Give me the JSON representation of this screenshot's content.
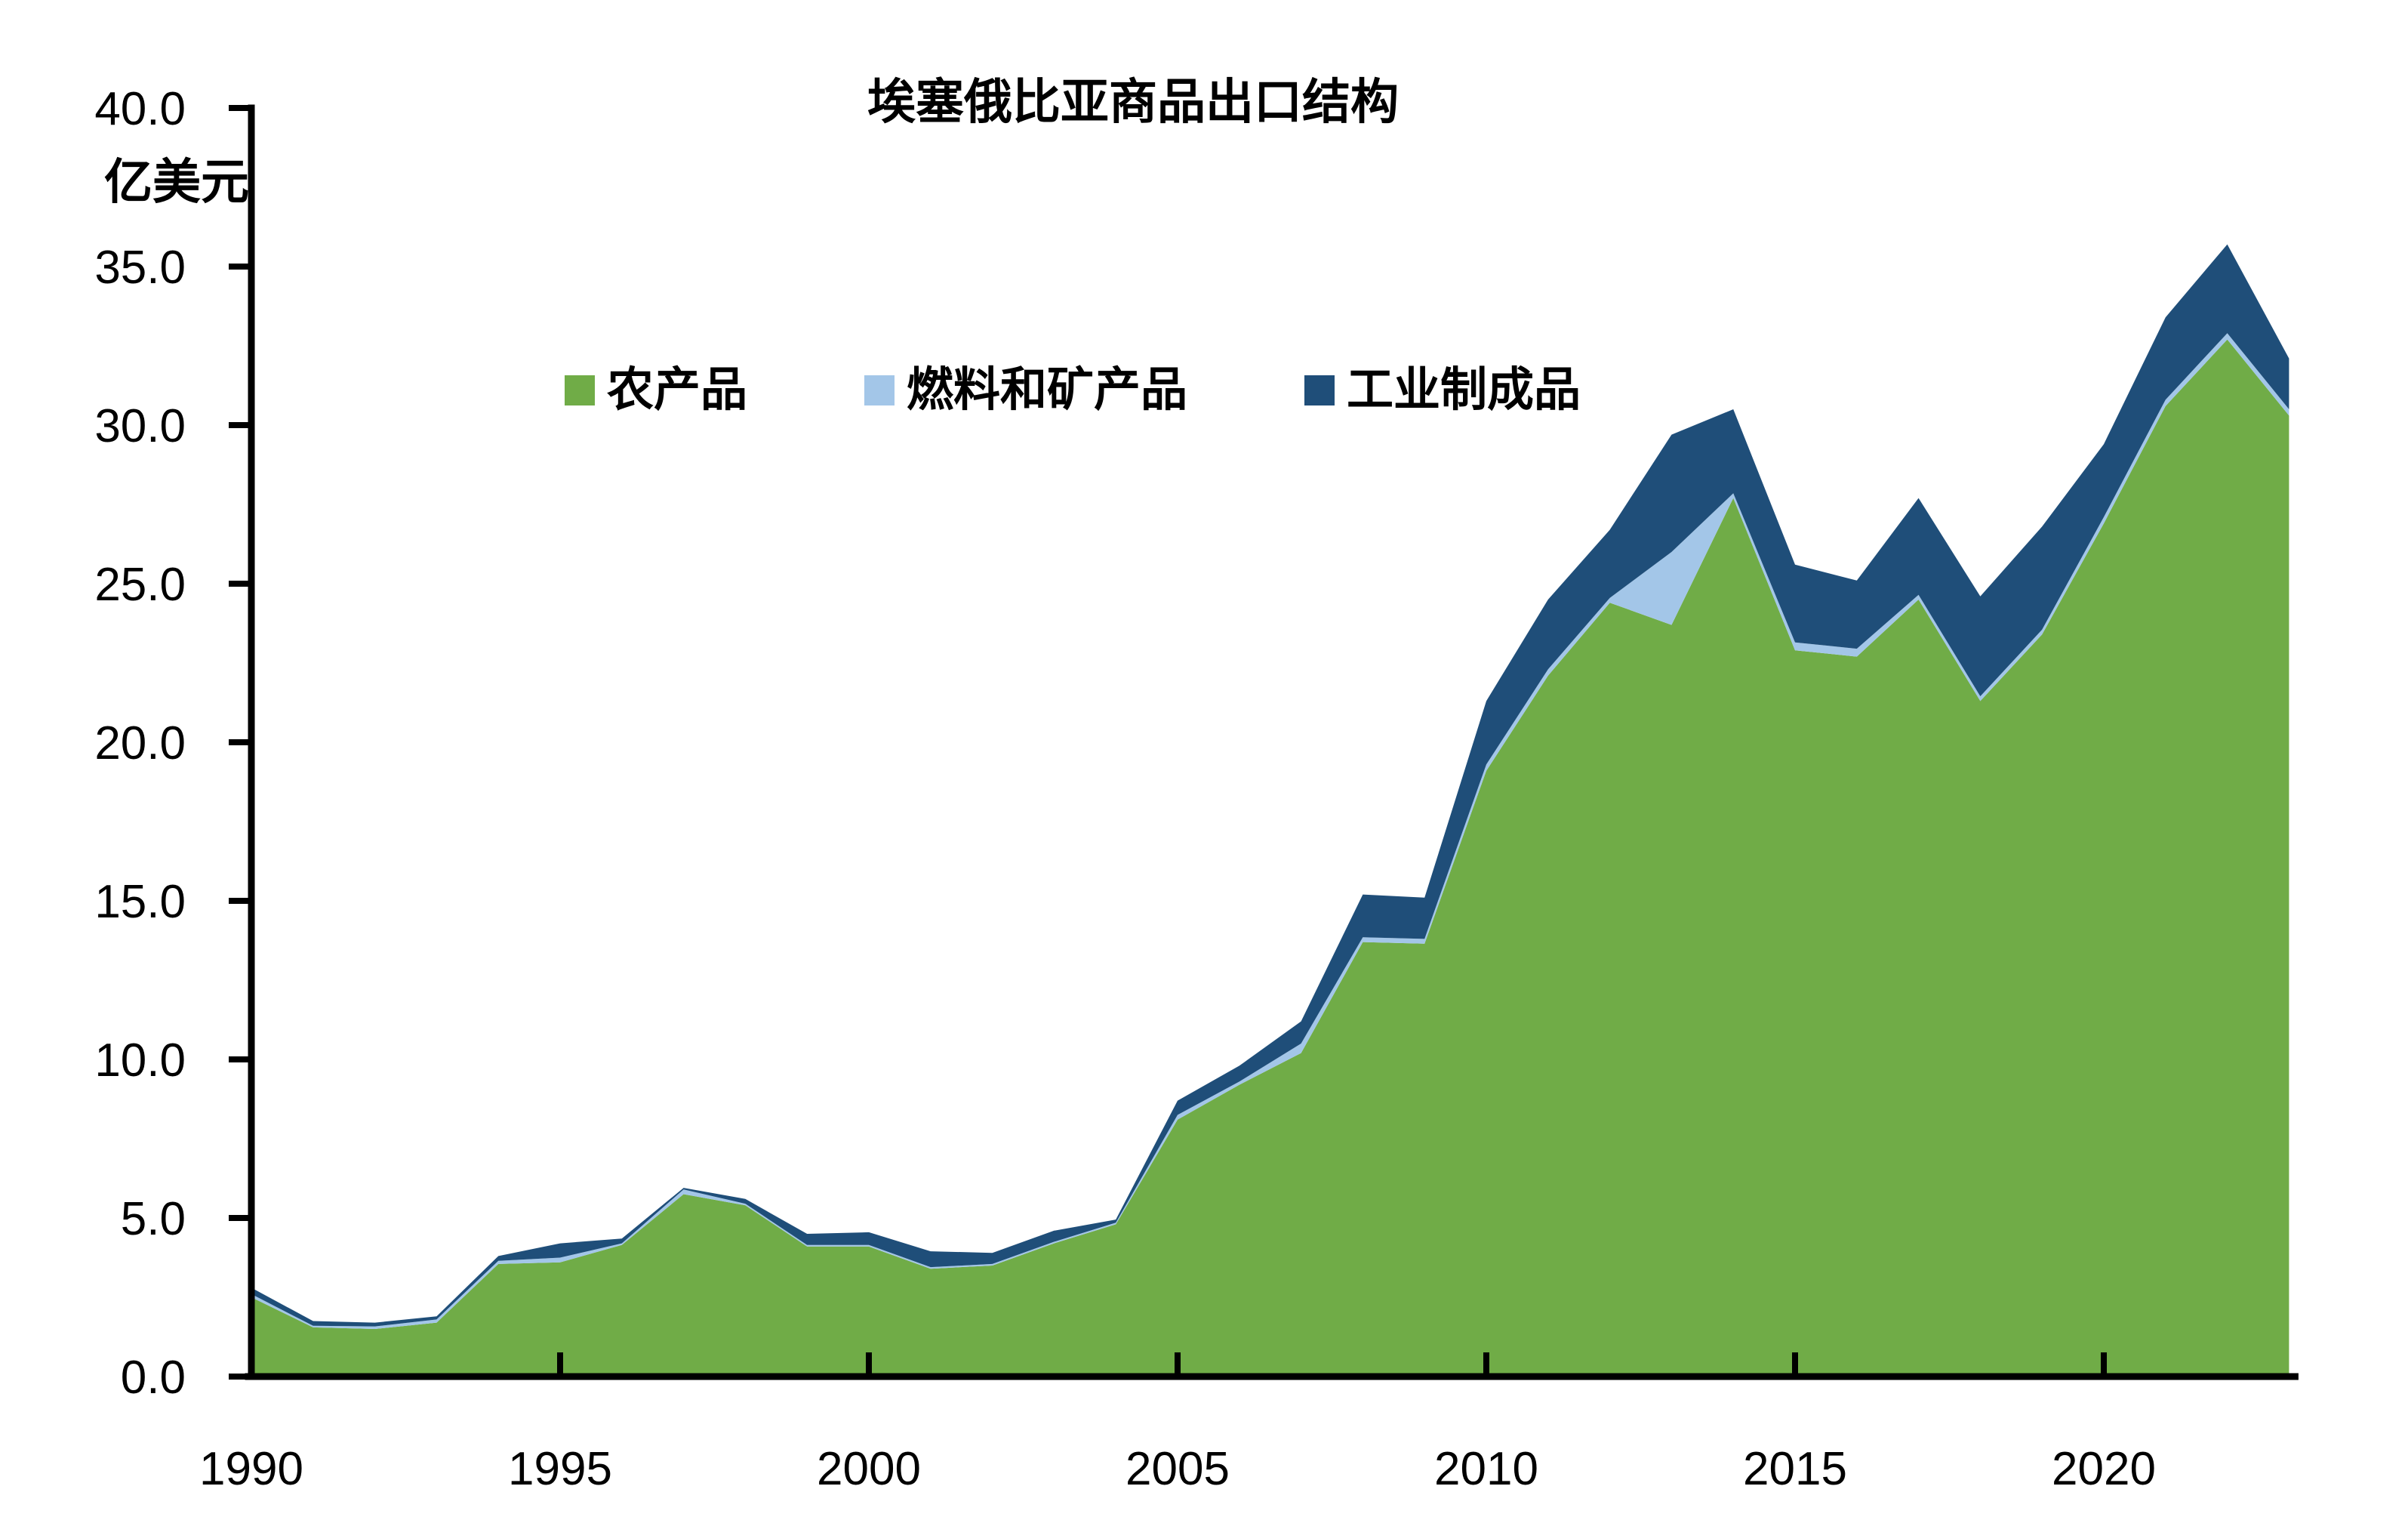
{
  "title": "埃塞俄比亚商品出口结构",
  "y_axis": {
    "unit_label": "亿美元",
    "tick_labels": [
      "0.0",
      "5.0",
      "10.0",
      "15.0",
      "20.0",
      "25.0",
      "30.0",
      "35.0",
      "40.0"
    ],
    "min": 0,
    "max": 40,
    "step": 5
  },
  "x_axis": {
    "tick_labels": [
      "1990",
      "1995",
      "2000",
      "2005",
      "2010",
      "2015",
      "2020"
    ],
    "tick_years": [
      1990,
      1995,
      2000,
      2005,
      2010,
      2015,
      2020
    ],
    "ticks_with_marks": [
      1995,
      2000,
      2005,
      2010,
      2015,
      2020
    ]
  },
  "legend": [
    {
      "label": "农产品",
      "color": "#70AC47"
    },
    {
      "label": "燃料和矿产品",
      "color": "#A3C6E8"
    },
    {
      "label": "工业制成品",
      "color": "#1F4E79"
    }
  ],
  "colors": {
    "agri_green": "#70AC47",
    "fuel_lightblue": "#A3C6E8",
    "manu_darkblue": "#1F4E79",
    "axis_black": "#000000",
    "background": "#FFFFFF"
  },
  "chart_data": {
    "type": "area",
    "stacked": true,
    "title": "埃塞俄比亚商品出口结构",
    "ylabel": "亿美元",
    "xlabel": "",
    "ylim": [
      0,
      40
    ],
    "xlim": [
      1990,
      2023
    ],
    "grid": false,
    "legend_position": "upper-left-inside",
    "x": [
      1990,
      1991,
      1992,
      1993,
      1994,
      1995,
      1996,
      1997,
      1998,
      1999,
      2000,
      2001,
      2002,
      2003,
      2004,
      2005,
      2006,
      2007,
      2008,
      2009,
      2010,
      2011,
      2012,
      2013,
      2014,
      2015,
      2016,
      2017,
      2018,
      2019,
      2020,
      2021,
      2022,
      2023
    ],
    "series": [
      {
        "name": "农产品",
        "color": "#70AC47",
        "values": [
          2.5,
          1.55,
          1.5,
          1.7,
          3.55,
          3.6,
          4.15,
          5.75,
          5.4,
          4.1,
          4.1,
          3.4,
          3.5,
          4.2,
          4.8,
          8.1,
          9.2,
          10.2,
          13.7,
          13.65,
          19.1,
          22.1,
          24.4,
          23.7,
          27.7,
          22.9,
          22.7,
          24.5,
          21.3,
          23.4,
          26.9,
          30.6,
          32.7,
          30.3
        ]
      },
      {
        "name": "燃料和矿产品",
        "color": "#A3C6E8",
        "values": [
          0.1,
          0.05,
          0.08,
          0.1,
          0.1,
          0.15,
          0.05,
          0.15,
          0.05,
          0.05,
          0.05,
          0.05,
          0.05,
          0.05,
          0.05,
          0.15,
          0.1,
          0.3,
          0.15,
          0.15,
          0.2,
          0.2,
          0.15,
          2.3,
          0.15,
          0.25,
          0.25,
          0.15,
          0.15,
          0.15,
          0.2,
          0.2,
          0.2,
          0.2
        ]
      },
      {
        "name": "工业制成品",
        "color": "#1F4E79",
        "values": [
          0.2,
          0.15,
          0.12,
          0.1,
          0.15,
          0.45,
          0.15,
          0.05,
          0.15,
          0.35,
          0.4,
          0.5,
          0.35,
          0.35,
          0.1,
          0.45,
          0.5,
          0.7,
          1.35,
          1.3,
          2.0,
          2.2,
          2.15,
          3.7,
          2.65,
          2.45,
          2.15,
          3.05,
          3.15,
          3.25,
          2.3,
          2.6,
          2.8,
          1.6
        ]
      }
    ]
  }
}
